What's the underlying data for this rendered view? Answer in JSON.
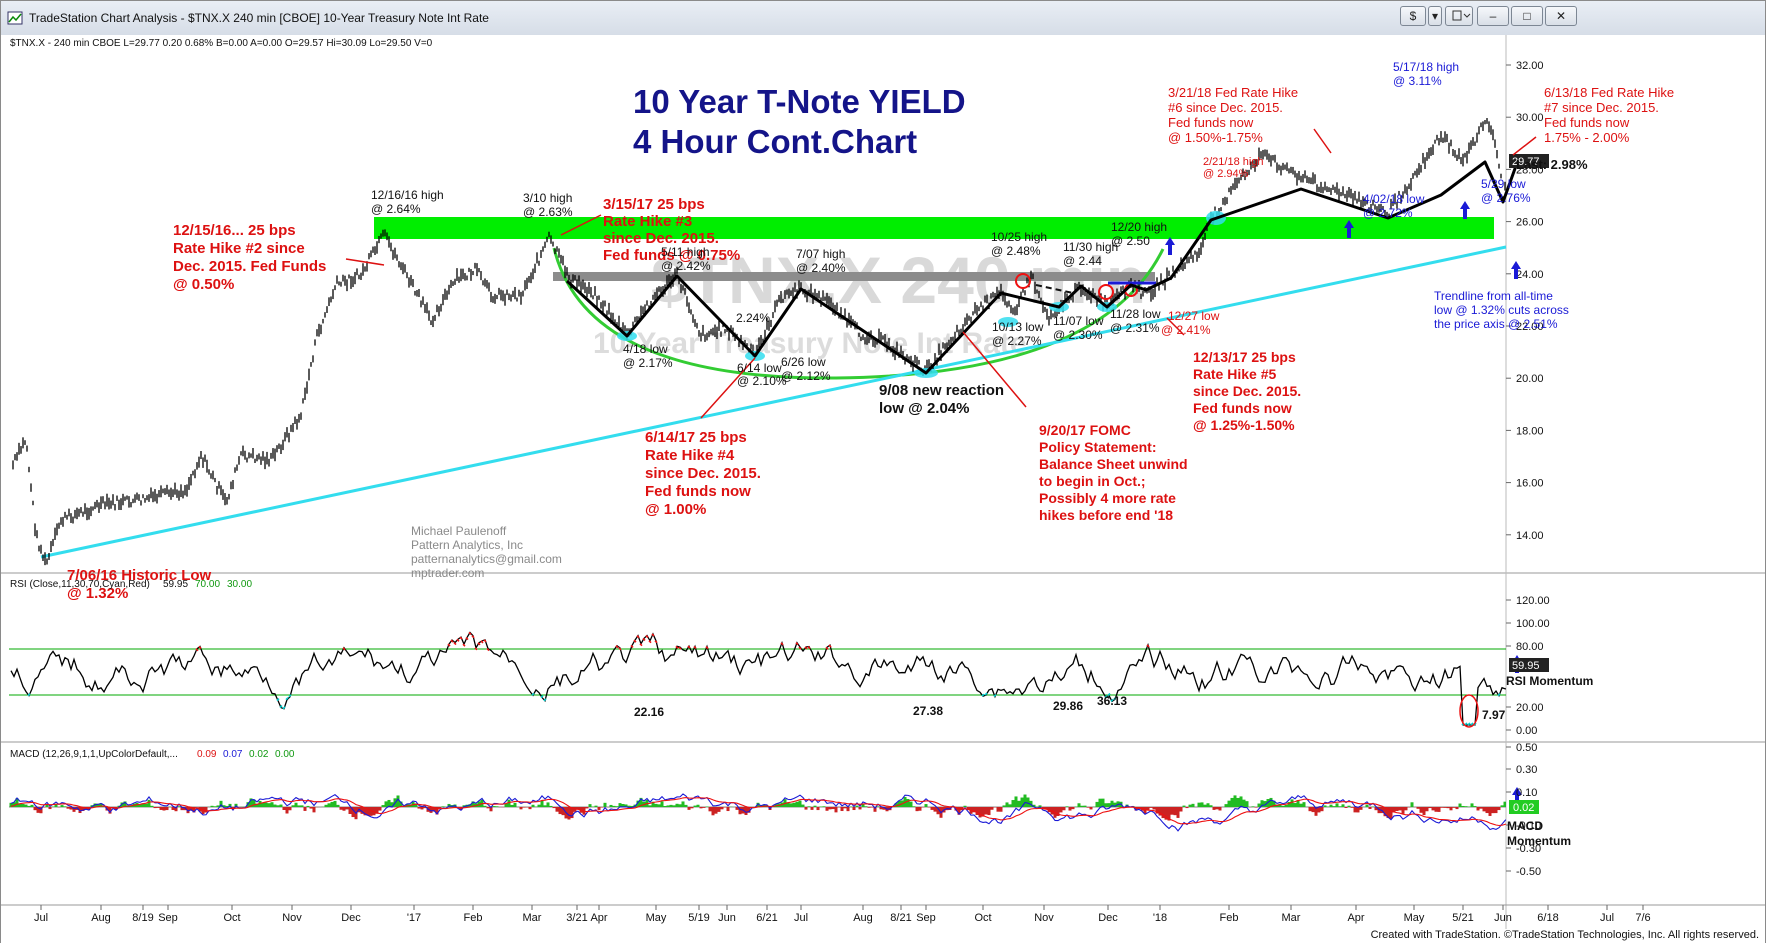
{
  "window": {
    "title": "TradeStation Chart Analysis - $TNX.X 240 min [CBOE] 10-Year Treasury Note Int Rate",
    "buttons": {
      "dollar": "$",
      "menu": "▾",
      "minimize": "–",
      "maximize": "□",
      "close": "✕"
    }
  },
  "header": {
    "symbol_line": "$TNX.X - 240 min  CBOE  L=29.77  0.20  0.68%  B=0.00  A=0.00  O=29.57  Hi=30.09  Lo=29.50  V=0"
  },
  "chart": {
    "title_line1": "10 Year T-Note YIELD",
    "title_line2": "4 Hour Cont.Chart",
    "watermark_line1": "$TNX.X 240 min",
    "watermark_line2": "10-Year Treasury Note Int Rate",
    "last_label": "Last: 2.98%",
    "last_value_box": "29.77",
    "y_ticks": [
      "32.00",
      "30.00",
      "28.00",
      "26.00",
      "24.00",
      "22.00",
      "20.00",
      "18.00",
      "16.00",
      "14.00"
    ],
    "x_ticks": [
      "Jul",
      "Aug",
      "8/19",
      "Sep",
      "Oct",
      "Nov",
      "Dec",
      "'17",
      "Feb",
      "Mar",
      "3/21",
      "Apr",
      "May",
      "5/19",
      "Jun",
      "6/21",
      "Jul",
      "Aug",
      "8/21",
      "Sep",
      "Oct",
      "Nov",
      "Dec",
      "'18",
      "Feb",
      "Mar",
      "Apr",
      "May",
      "5/21",
      "Jun",
      "6/18",
      "Jul",
      "7/6"
    ],
    "author": [
      "Michael Paulenoff",
      "Pattern Analytics, Inc",
      "patternanalytics@gmail.com",
      "mptrader.com"
    ],
    "annotations_red": {
      "hike2": [
        "12/15/16... 25 bps",
        "Rate Hike #2 since",
        "Dec. 2015. Fed Funds",
        "@ 0.50%"
      ],
      "hike3": [
        "3/15/17 25 bps",
        "Rate Hike #3",
        "since Dec. 2015.",
        "Fed funds @ 0.75%"
      ],
      "hike4": [
        "6/14/17 25 bps",
        "Rate Hike #4",
        "since Dec. 2015.",
        "Fed funds now",
        "@ 1.00%"
      ],
      "fomc": [
        "9/20/17 FOMC",
        "Policy Statement:",
        "Balance Sheet unwind",
        "to begin in Oct.;",
        "Possibly 4 more rate",
        "hikes before end '18"
      ],
      "hike5": [
        "12/13/17 25 bps",
        "Rate Hike #5",
        "since Dec. 2015.",
        "Fed funds now",
        "@ 1.25%-1.50%"
      ],
      "hike6": [
        "3/21/18 Fed Rate Hike",
        "#6 since Dec. 2015.",
        "Fed funds now",
        "@ 1.50%-1.75%"
      ],
      "hike7": [
        "6/13/18 Fed Rate Hike",
        "#7 since Dec. 2015.",
        "Fed funds now",
        "1.75% - 2.00%"
      ],
      "historic": [
        "7/06/16 Historic Low",
        "@ 1.32%"
      ],
      "high_2_21": [
        "2/21/18 high",
        "@ 2.94%"
      ],
      "low_12_27": [
        "12/27 low",
        "@ 2.41%"
      ]
    },
    "annotations_black": {
      "h_12_16": [
        "12/16/16 high",
        "@ 2.64%"
      ],
      "h_3_10": [
        "3/10 high",
        "@ 2.63%"
      ],
      "h_5_11": [
        "5/11 high",
        "@ 2.42%"
      ],
      "h_7_07": [
        "7/07 high",
        "@ 2.40%"
      ],
      "h_10_25": [
        "10/25 high",
        "@ 2.48%"
      ],
      "h_11_30": [
        "11/30 high",
        "@ 2.44"
      ],
      "h_12_20": [
        "12/20 high",
        "@ 2.50"
      ],
      "l_4_18": [
        "4/18 low",
        "@ 2.17%"
      ],
      "v_224": [
        "2.24%"
      ],
      "l_6_14": [
        "6/14 low",
        "@ 2.10%"
      ],
      "l_6_26": [
        "6/26 low",
        "@ 2.12%"
      ],
      "l_9_08": [
        "9/08 new reaction",
        "low @ 2.04%"
      ],
      "l_10_13": [
        "10/13 low",
        "@ 2.27%"
      ],
      "l_11_07": [
        "11/07 low",
        "@ 2.30%"
      ],
      "l_11_28": [
        "11/28 low",
        "@ 2.31%"
      ]
    },
    "annotations_blue": {
      "h_5_17": [
        "5/17/18 high",
        "@ 3.11%"
      ],
      "l_4_02": [
        "4/02/18 low",
        "@ 2.72%"
      ],
      "l_5_29": [
        "5/29 low",
        "@ 2.76%"
      ],
      "trendline": [
        "Trendline from all-time",
        "low @ 1.32% cuts across",
        "the price axis @ 2.51%"
      ]
    }
  },
  "rsi": {
    "header": "RSI (Close,11,30,70,Cyan,Red)",
    "val1": "59.95",
    "val2": "70.00",
    "val3": "30.00",
    "y_ticks": [
      "120.00",
      "100.00",
      "80.00",
      "20.00",
      "0.00"
    ],
    "last_box": "59.95",
    "label": "RSI Momentum",
    "lows": [
      "22.16",
      "27.38",
      "29.86",
      "36.13",
      "7.97"
    ]
  },
  "macd": {
    "header": "MACD (12,26,9,1,1,UpColorDefault,...",
    "val1": "0.09",
    "val2": "0.07",
    "val3": "0.02",
    "val4": "0.00",
    "y_ticks": [
      "0.50",
      "0.30",
      "0.10",
      "-0.10",
      "-0.30",
      "-0.50"
    ],
    "last_box": "0.02",
    "label_line1": "MACD",
    "label_line2": "Momentum"
  },
  "footer": {
    "credit": "Created with TradeStation. ©TradeStation Technologies, Inc. All rights reserved."
  },
  "colors": {
    "price": "#000000",
    "green_band": "#00ee00",
    "gray_band": "#8c8c8c",
    "trendline": "#33ddee",
    "arc": "#33cc33",
    "red_text": "#dd1111",
    "blue_text": "#1a1ad6",
    "title_navy": "#141489"
  }
}
